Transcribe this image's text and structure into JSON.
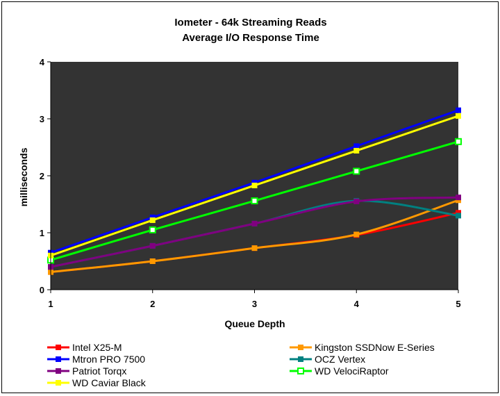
{
  "chart_data": {
    "type": "line",
    "title": "Iometer - 64k Streaming Reads",
    "subtitle": "Average I/O Response Time",
    "xlabel": "Queue Depth",
    "ylabel": "milliseconds",
    "categories": [
      "1",
      "2",
      "3",
      "4",
      "5"
    ],
    "x": [
      1,
      2,
      3,
      4,
      5
    ],
    "xlim": [
      1,
      5
    ],
    "ylim": [
      0,
      4
    ],
    "yticks": [
      "0",
      "1",
      "2",
      "3",
      "4"
    ],
    "grid": false,
    "plot_background": "#333333",
    "legend_position": "bottom",
    "series": [
      {
        "name": "Intel X25-M",
        "color": "#ff0000",
        "values": [
          0.31,
          0.5,
          0.73,
          0.96,
          1.35
        ],
        "marker": "filled"
      },
      {
        "name": "Kingston SSDNow E-Series",
        "color": "#ff9900",
        "values": [
          0.31,
          0.5,
          0.73,
          0.97,
          1.57
        ],
        "marker": "filled"
      },
      {
        "name": "Mtron PRO 7500",
        "color": "#0000ff",
        "values": [
          0.65,
          1.27,
          1.88,
          2.52,
          3.15
        ],
        "marker": "filled"
      },
      {
        "name": "OCZ Vertex",
        "color": "#008080",
        "values": [
          0.4,
          0.77,
          1.16,
          1.56,
          1.3
        ],
        "marker": "filled"
      },
      {
        "name": "Patriot Torqx",
        "color": "#800080",
        "values": [
          0.4,
          0.77,
          1.16,
          1.55,
          1.62
        ],
        "marker": "filled"
      },
      {
        "name": "WD VelociRaptor",
        "color": "#00ff00",
        "values": [
          0.52,
          1.05,
          1.56,
          2.08,
          2.6
        ],
        "marker": "hollow"
      },
      {
        "name": "WD Caviar Black",
        "color": "#ffff00",
        "values": [
          0.6,
          1.22,
          1.83,
          2.44,
          3.05
        ],
        "marker": "filled"
      }
    ]
  }
}
